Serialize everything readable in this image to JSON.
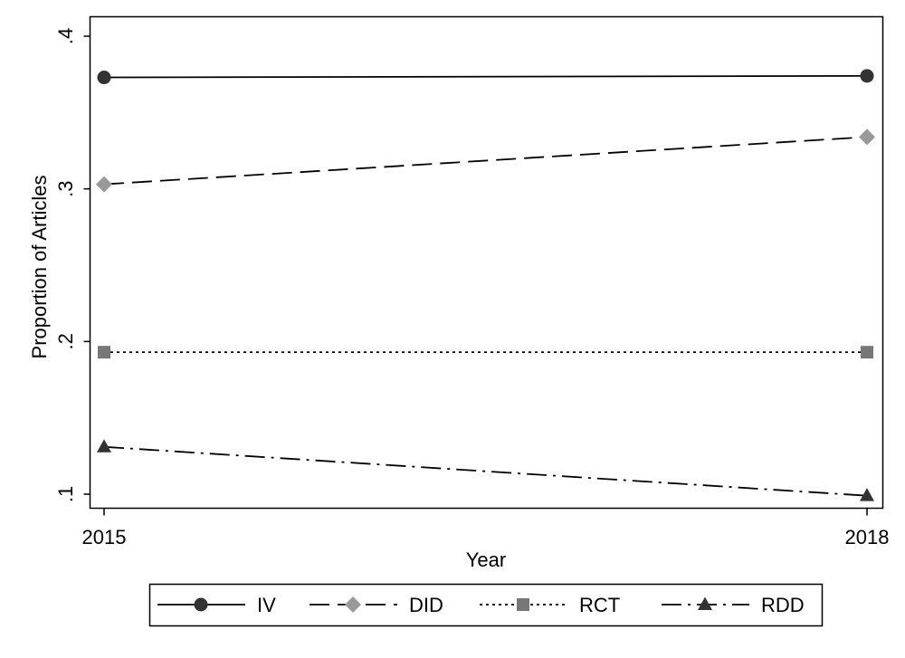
{
  "chart_data": {
    "type": "line",
    "title": "",
    "xlabel": "Year",
    "ylabel": "Proportion of Articles",
    "x": [
      2015,
      2018
    ],
    "x_tick_labels": [
      "2015",
      "2018"
    ],
    "ylim": [
      0.1,
      0.4
    ],
    "y_ticks": [
      0.1,
      0.2,
      0.3,
      0.4
    ],
    "y_tick_labels": [
      ".1",
      ".2",
      ".3",
      ".4"
    ],
    "grid": false,
    "legend_position": "bottom",
    "series": [
      {
        "name": "IV",
        "values": [
          0.373,
          0.374
        ],
        "color": "#333333",
        "marker": "circle",
        "line_style": "solid"
      },
      {
        "name": "DID",
        "values": [
          0.303,
          0.334
        ],
        "color": "#999999",
        "marker": "diamond",
        "line_style": "dash"
      },
      {
        "name": "RCT",
        "values": [
          0.193,
          0.193
        ],
        "color": "#777777",
        "marker": "square",
        "line_style": "dot"
      },
      {
        "name": "RDD",
        "values": [
          0.131,
          0.099
        ],
        "color": "#333333",
        "marker": "triangle",
        "line_style": "dash-dot"
      }
    ]
  }
}
